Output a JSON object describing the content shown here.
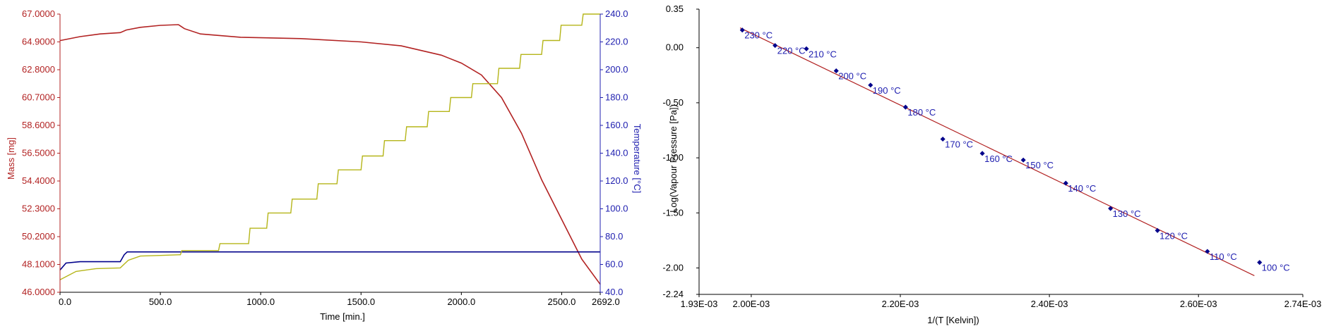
{
  "chart_data": [
    {
      "type": "line",
      "xlabel": "Time [min.]",
      "ylabel_left": "Mass [mg]",
      "ylabel_right": "Temperature [°C]",
      "xlim": [
        0,
        2692
      ],
      "x_ticks": [
        "0.0",
        "500.0",
        "1000.0",
        "1500.0",
        "2000.0",
        "2500.0",
        "2692.0"
      ],
      "x_tick_values": [
        0,
        500,
        1000,
        1500,
        2000,
        2500,
        2692
      ],
      "ylim_left": [
        46.0,
        67.0
      ],
      "y_left_ticks": [
        "46.0000",
        "48.1000",
        "50.2000",
        "52.3000",
        "54.4000",
        "56.5000",
        "58.6000",
        "60.7000",
        "62.8000",
        "64.9000",
        "67.0000"
      ],
      "ylim_right": [
        40,
        240
      ],
      "y_right_ticks": [
        "40.0",
        "60.0",
        "80.0",
        "100.0",
        "120.0",
        "140.0",
        "160.0",
        "180.0",
        "200.0",
        "220.0",
        "240.0"
      ],
      "colors": {
        "mass": "#b22222",
        "temperature_blue": "#00008b",
        "temperature_yellow": "#b5b519",
        "axis_left": "#b22222",
        "axis_right": "#2020b0"
      },
      "series": [
        {
          "axis": "left",
          "x": [
            0,
            100,
            200,
            300,
            330,
            400,
            500,
            590,
            620,
            700,
            900,
            1200,
            1500,
            1700,
            1900,
            2000,
            2100,
            2200,
            2300,
            2400,
            2500,
            2600,
            2692
          ],
          "values": [
            65.0,
            65.3,
            65.5,
            65.6,
            65.8,
            66.0,
            66.15,
            66.2,
            65.9,
            65.5,
            65.25,
            65.15,
            64.9,
            64.6,
            63.9,
            63.3,
            62.4,
            60.7,
            58.0,
            54.5,
            51.5,
            48.5,
            46.6
          ]
        },
        {
          "axis": "right",
          "x": [
            0,
            30,
            100,
            300,
            320,
            335,
            350,
            2692
          ],
          "values": [
            56,
            61,
            62,
            62,
            67,
            69,
            69,
            69
          ]
        },
        {
          "axis": "right",
          "x": [
            0,
            80,
            180,
            300,
            340,
            400,
            500,
            600
          ],
          "values": [
            49,
            55,
            57,
            57.5,
            63,
            66,
            66.5,
            67
          ],
          "steps": [
            [
              600,
              790,
              70
            ],
            [
              790,
              940,
              75
            ],
            [
              940,
              1030,
              86
            ],
            [
              1030,
              1150,
              97
            ],
            [
              1150,
              1280,
              107
            ],
            [
              1280,
              1380,
              118
            ],
            [
              1380,
              1500,
              128
            ],
            [
              1500,
              1610,
              138
            ],
            [
              1610,
              1720,
              149
            ],
            [
              1720,
              1830,
              159
            ],
            [
              1830,
              1940,
              170
            ],
            [
              1940,
              2050,
              180
            ],
            [
              2050,
              2180,
              190
            ],
            [
              2180,
              2290,
              201
            ],
            [
              2290,
              2400,
              211
            ],
            [
              2400,
              2490,
              221
            ],
            [
              2490,
              2600,
              232
            ],
            [
              2600,
              2692,
              242
            ]
          ]
        }
      ]
    },
    {
      "type": "scatter",
      "xlabel": "1/(T [Kelvin])",
      "ylabel": "Log(Vapour Pressure [Pa])",
      "xlim": [
        0.00193,
        0.00274
      ],
      "x_ticks": [
        "1.93E-03",
        "2.00E-03",
        "2.20E-03",
        "2.40E-03",
        "2.60E-03",
        "2.74E-03"
      ],
      "x_tick_values": [
        0.00193,
        0.002,
        0.0022,
        0.0024,
        0.0026,
        0.00274
      ],
      "ylim": [
        -2.24,
        0.35
      ],
      "y_ticks": [
        "0.35",
        "0.00",
        "-0.50",
        "-1.00",
        "-1.50",
        "-2.00",
        "-2.24"
      ],
      "y_tick_values": [
        0.35,
        0.0,
        -0.5,
        -1.0,
        -1.5,
        -2.0,
        -2.24
      ],
      "colors": {
        "points": "#00008b",
        "labels": "#2020b0",
        "fit": "#b22222"
      },
      "fit_line": {
        "x": [
          0.001985,
          0.002675
        ],
        "y": [
          0.18,
          -2.07
        ]
      },
      "points": [
        {
          "label": "230 °C",
          "x": 0.001988,
          "y": 0.16
        },
        {
          "label": "220 °C",
          "x": 0.002032,
          "y": 0.02
        },
        {
          "label": "210 °C",
          "x": 0.002074,
          "y": -0.01
        },
        {
          "label": "200 °C",
          "x": 0.002114,
          "y": -0.21
        },
        {
          "label": "190 °C",
          "x": 0.00216,
          "y": -0.34
        },
        {
          "label": "180 °C",
          "x": 0.002207,
          "y": -0.54
        },
        {
          "label": "170 °C",
          "x": 0.002257,
          "y": -0.83
        },
        {
          "label": "160 °C",
          "x": 0.00231,
          "y": -0.96
        },
        {
          "label": "150 °C",
          "x": 0.002365,
          "y": -1.02
        },
        {
          "label": "140 °C",
          "x": 0.002422,
          "y": -1.23
        },
        {
          "label": "130 °C",
          "x": 0.002482,
          "y": -1.46
        },
        {
          "label": "120 °C",
          "x": 0.002545,
          "y": -1.66
        },
        {
          "label": "110 °C",
          "x": 0.002612,
          "y": -1.85
        },
        {
          "label": "100 °C",
          "x": 0.002682,
          "y": -1.95
        }
      ]
    }
  ]
}
